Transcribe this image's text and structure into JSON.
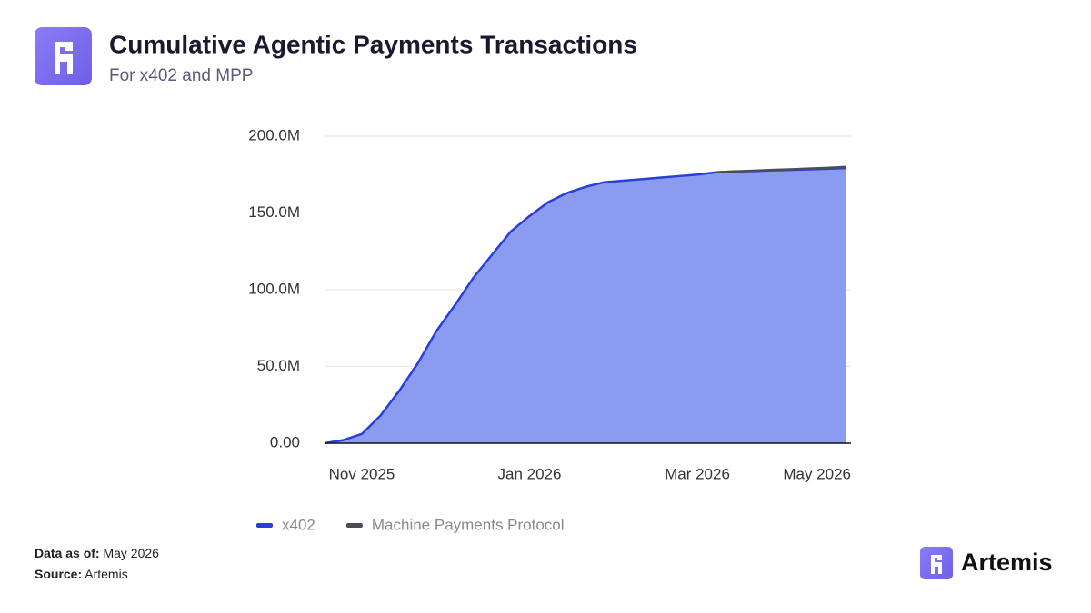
{
  "header": {
    "title": "Cumulative Agentic Payments Transactions",
    "subtitle": "For x402 and MPP"
  },
  "chart_data": {
    "type": "area",
    "stacked": true,
    "categories": [
      null,
      null,
      "Nov 2025",
      null,
      null,
      null,
      null,
      null,
      null,
      null,
      null,
      "Jan 2026",
      null,
      null,
      null,
      null,
      null,
      null,
      null,
      null,
      "Mar 2026",
      null,
      null,
      null,
      null,
      null,
      null,
      null,
      "May 2026"
    ],
    "series": [
      {
        "name": "x402",
        "color": "#2a3fd6",
        "fill": "#8b9cf0",
        "values": [
          0,
          2000000,
          6000000,
          18000000,
          34000000,
          52000000,
          73000000,
          90000000,
          108000000,
          123000000,
          138000000,
          148000000,
          157000000,
          163000000,
          167000000,
          170000000,
          171000000,
          172000000,
          173000000,
          174000000,
          175000000,
          176500000,
          177000000,
          177300000,
          177700000,
          178000000,
          178400000,
          178800000,
          179200000
        ]
      },
      {
        "name": "Machine Payments Protocol",
        "color": "#4a4d57",
        "fill": "#8b9cf0",
        "values": [
          null,
          null,
          null,
          null,
          null,
          null,
          null,
          null,
          null,
          null,
          null,
          null,
          null,
          null,
          null,
          null,
          null,
          null,
          null,
          null,
          null,
          0,
          100000,
          200000,
          300000,
          400000,
          500000,
          600000,
          800000
        ]
      }
    ],
    "ylim": [
      0,
      200000000
    ],
    "yticks": [
      {
        "value": 0,
        "label": "0.00"
      },
      {
        "value": 50000000,
        "label": "50.0M"
      },
      {
        "value": 100000000,
        "label": "100.0M"
      },
      {
        "value": 150000000,
        "label": "150.0M"
      },
      {
        "value": 200000000,
        "label": "200.0M"
      }
    ],
    "grid": true,
    "legend": "bottom"
  },
  "footer": {
    "data_as_of_label": "Data as of:",
    "data_as_of": "May 2026",
    "source_label": "Source:",
    "source": "Artemis",
    "brand": "Artemis"
  }
}
